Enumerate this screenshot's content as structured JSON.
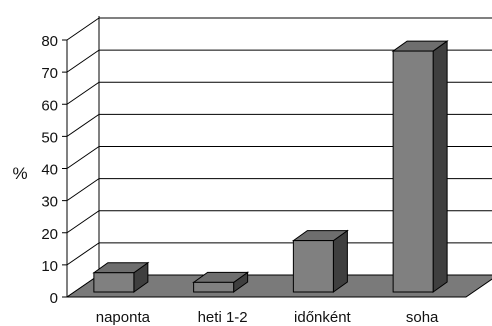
{
  "chart_data": {
    "type": "bar",
    "style": "3d",
    "categories": [
      "naponta",
      "heti 1-2",
      "időnként",
      "soha"
    ],
    "values": [
      6,
      3,
      16,
      75
    ],
    "title": "",
    "xlabel": "",
    "ylabel": "%",
    "ylim": [
      0,
      80
    ],
    "yticks": [
      0,
      10,
      20,
      30,
      40,
      50,
      60,
      70,
      80
    ],
    "grid": true,
    "legend": "none",
    "colors": {
      "bar_front": "#808080",
      "bar_top": "#6e6e6e",
      "bar_side": "#3f3f3f",
      "floor": "#7a7a7a",
      "grid": "#000000",
      "axis": "#000000"
    }
  }
}
